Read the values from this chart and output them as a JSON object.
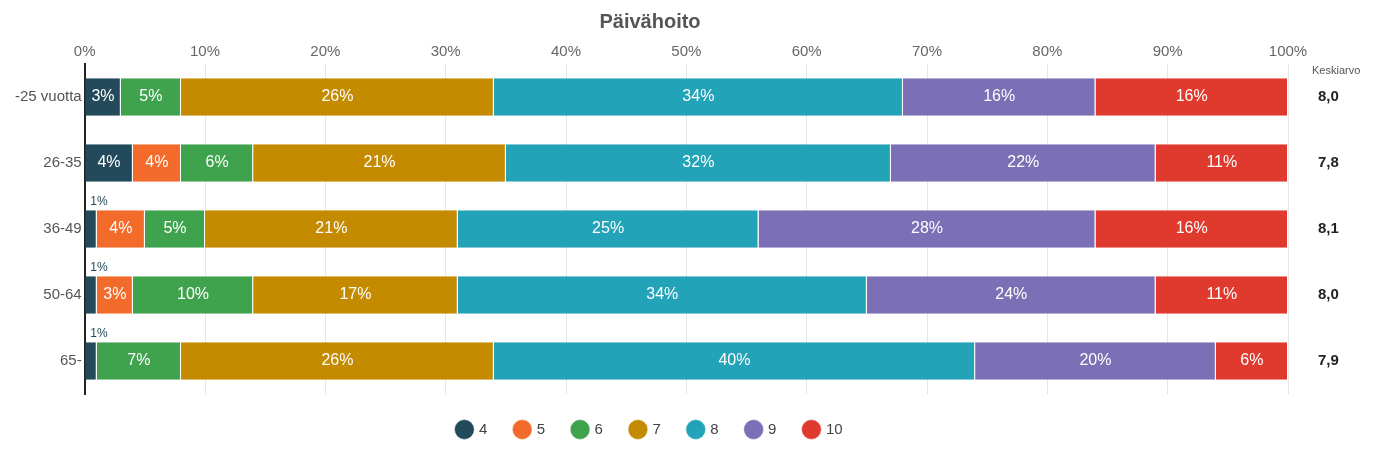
{
  "chart_data": {
    "type": "bar",
    "orientation": "horizontal",
    "stacked": true,
    "title": "Päivähoito",
    "categories": [
      "-25 vuotta",
      "26-35",
      "36-49",
      "50-64",
      "65-"
    ],
    "series": [
      {
        "name": "4",
        "color": "#234a5a",
        "values": [
          3,
          4,
          1,
          1,
          1
        ],
        "value_labels": [
          "3%",
          "4%",
          "1%",
          "1%",
          "1%"
        ]
      },
      {
        "name": "5",
        "color": "#f26b2a",
        "values": [
          0,
          4,
          4,
          3,
          0
        ],
        "value_labels": [
          null,
          "4%",
          "4%",
          "3%",
          null
        ]
      },
      {
        "name": "6",
        "color": "#3fa34d",
        "values": [
          5,
          6,
          5,
          10,
          7
        ],
        "value_labels": [
          "5%",
          "6%",
          "5%",
          "10%",
          "7%"
        ]
      },
      {
        "name": "7",
        "color": "#c48a00",
        "values": [
          26,
          21,
          21,
          17,
          26
        ],
        "value_labels": [
          "26%",
          "21%",
          "21%",
          "17%",
          "26%"
        ]
      },
      {
        "name": "8",
        "color": "#23a3b8",
        "values": [
          34,
          32,
          25,
          34,
          40
        ],
        "value_labels": [
          "34%",
          "32%",
          "25%",
          "34%",
          "40%"
        ]
      },
      {
        "name": "9",
        "color": "#7b6fb5",
        "values": [
          16,
          22,
          28,
          24,
          20
        ],
        "value_labels": [
          "16%",
          "22%",
          "28%",
          "24%",
          "20%"
        ]
      },
      {
        "name": "10",
        "color": "#e03a2f",
        "values": [
          16,
          11,
          16,
          11,
          6
        ],
        "value_labels": [
          "16%",
          "11%",
          "16%",
          "11%",
          "6%"
        ]
      }
    ],
    "xlim": [
      0,
      100
    ],
    "xticks": [
      {
        "value": 0,
        "label": "0%"
      },
      {
        "value": 10,
        "label": "10%"
      },
      {
        "value": 20,
        "label": "20%"
      },
      {
        "value": 30,
        "label": "30%"
      },
      {
        "value": 40,
        "label": "40%"
      },
      {
        "value": 50,
        "label": "50%"
      },
      {
        "value": 60,
        "label": "60%"
      },
      {
        "value": 70,
        "label": "70%"
      },
      {
        "value": 80,
        "label": "80%"
      },
      {
        "value": 90,
        "label": "90%"
      },
      {
        "value": 100,
        "label": "100%"
      }
    ],
    "grid": "x",
    "legend": "bottom",
    "marker": "circle",
    "annotations": [
      "Keskiarvo",
      "8,0",
      "7,8",
      "8,1",
      "8,0",
      "7,9"
    ]
  }
}
